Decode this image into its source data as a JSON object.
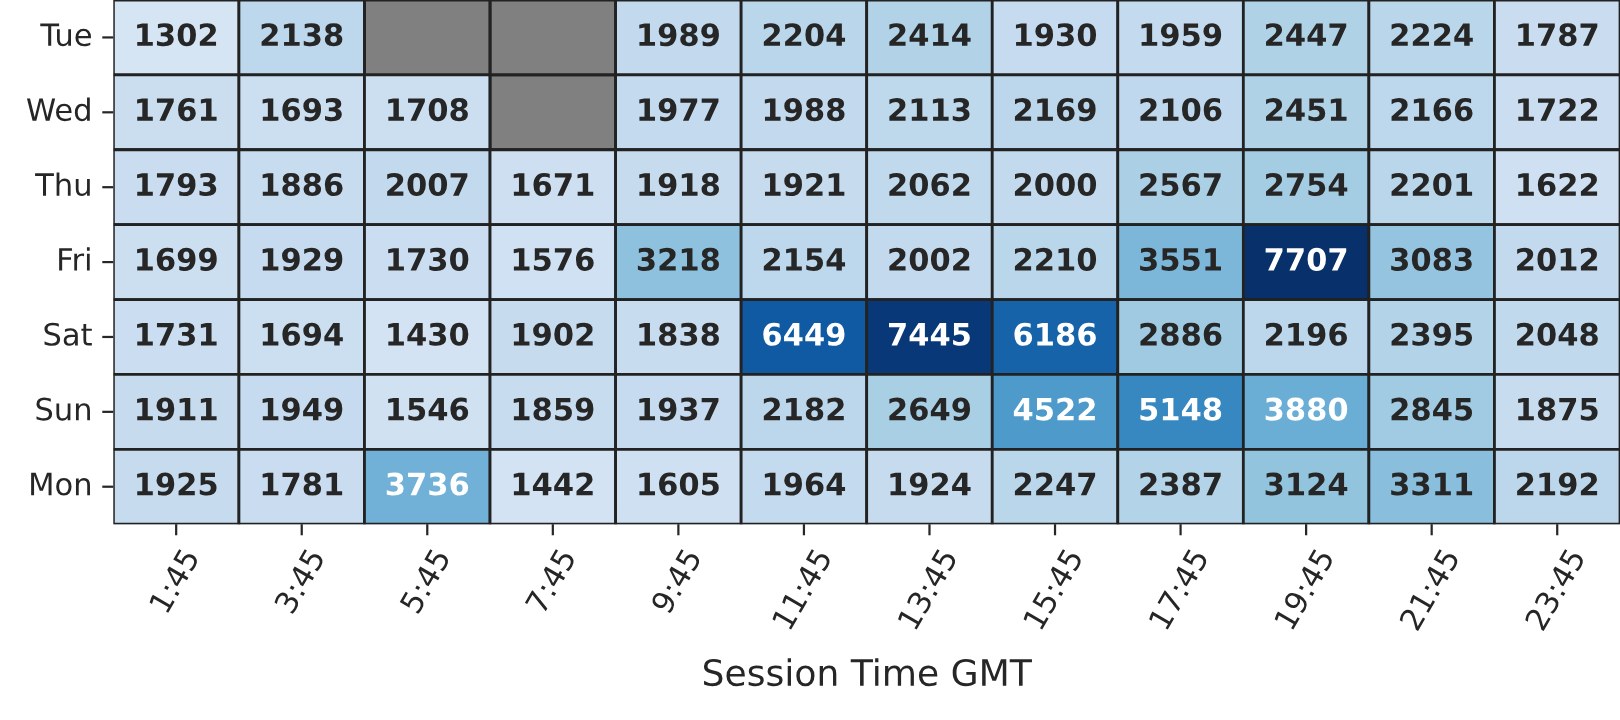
{
  "chart_data": {
    "type": "heatmap",
    "xlabel": "Session Time GMT",
    "categories": [
      "1:45",
      "3:45",
      "5:45",
      "7:45",
      "9:45",
      "11:45",
      "13:45",
      "15:45",
      "17:45",
      "19:45",
      "21:45",
      "23:45"
    ],
    "y_categories": [
      "Tue",
      "Wed",
      "Thu",
      "Fri",
      "Sat",
      "Sun",
      "Mon"
    ],
    "cells": [
      [
        1302,
        2138,
        null,
        null,
        1989,
        2204,
        2414,
        1930,
        1959,
        2447,
        2224,
        1787
      ],
      [
        1761,
        1693,
        1708,
        null,
        1977,
        1988,
        2113,
        2169,
        2106,
        2451,
        2166,
        1722
      ],
      [
        1793,
        1886,
        2007,
        1671,
        1918,
        1921,
        2062,
        2000,
        2567,
        2754,
        2201,
        1622
      ],
      [
        1699,
        1929,
        1730,
        1576,
        3218,
        2154,
        2002,
        2210,
        3551,
        7707,
        3083,
        2012
      ],
      [
        1731,
        1694,
        1430,
        1902,
        1838,
        6449,
        7445,
        6186,
        2886,
        2196,
        2395,
        2048
      ],
      [
        1911,
        1949,
        1546,
        1859,
        1937,
        2182,
        2649,
        4522,
        5148,
        3880,
        2845,
        1875
      ],
      [
        1925,
        1781,
        3736,
        1442,
        1605,
        1964,
        1924,
        2247,
        2387,
        3124,
        3311,
        2192
      ]
    ],
    "data_labels": true
  }
}
